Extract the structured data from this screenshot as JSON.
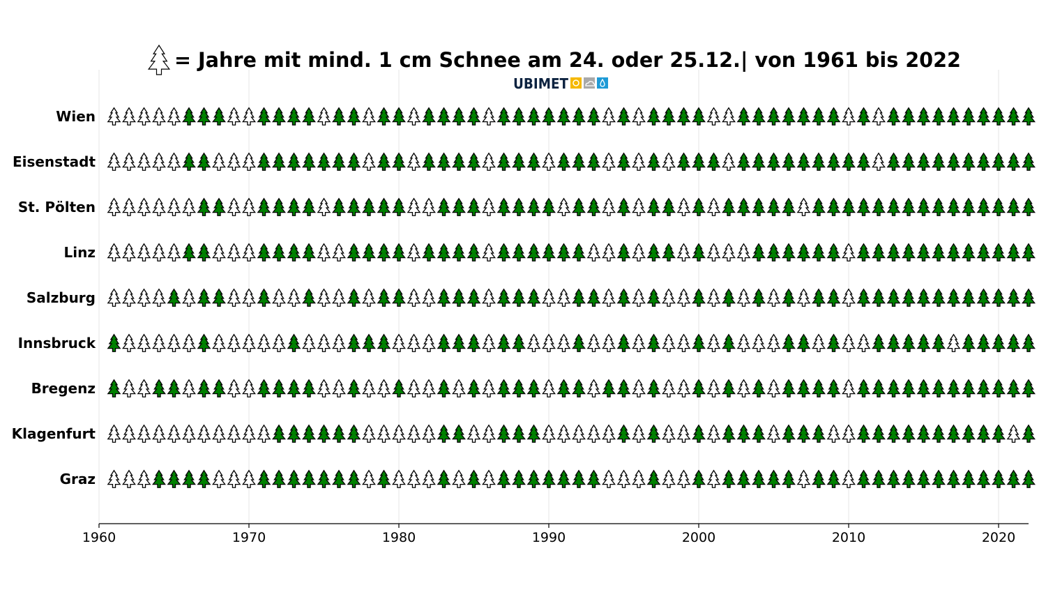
{
  "chart_data": {
    "type": "pictogram",
    "title": "= Jahre mit mind. 1 cm Schnee am 24. oder 25.12.| von 1961 bis 2022",
    "legend_icon": "tree-icon-outline",
    "logo": "UBIMET",
    "xlim": [
      1960,
      2022
    ],
    "x_ticks": [
      1960,
      1970,
      1980,
      1990,
      2000,
      2010,
      2020
    ],
    "years": [
      1961,
      2022
    ],
    "grid": "vertical",
    "colors": {
      "snow": "#008000",
      "no_snow": "#ffffff",
      "outline": "#000000",
      "logo_yellow": "#f5b800",
      "logo_gray": "#a9a9a9",
      "logo_blue": "#1e9ad6",
      "logo_text": "#0d2340"
    },
    "encoding": {
      "1": "green tree (snow)",
      "0": "white tree (no snow)"
    },
    "series": [
      {
        "name": "Wien",
        "values": [
          0,
          0,
          0,
          0,
          0,
          1,
          1,
          1,
          0,
          0,
          1,
          1,
          1,
          1,
          0,
          1,
          1,
          0,
          1,
          1,
          0,
          1,
          1,
          1,
          1,
          0,
          1,
          1,
          1,
          1,
          1,
          1,
          1,
          0,
          1,
          0,
          1,
          1,
          1,
          1,
          0,
          0,
          1,
          1,
          1,
          1,
          1,
          1,
          1,
          0,
          1,
          0,
          1,
          1,
          1,
          1,
          1,
          1,
          1,
          1,
          1,
          1
        ]
      },
      {
        "name": "Eisenstadt",
        "values": [
          0,
          0,
          0,
          0,
          0,
          1,
          1,
          0,
          0,
          0,
          1,
          1,
          1,
          1,
          1,
          1,
          1,
          0,
          1,
          1,
          0,
          1,
          1,
          1,
          1,
          0,
          1,
          1,
          1,
          0,
          1,
          1,
          1,
          0,
          1,
          0,
          1,
          0,
          1,
          1,
          1,
          0,
          1,
          1,
          1,
          1,
          1,
          1,
          1,
          1,
          1,
          0,
          1,
          1,
          1,
          1,
          1,
          1,
          1,
          1,
          1,
          1
        ]
      },
      {
        "name": "St. Pölten",
        "values": [
          0,
          0,
          0,
          0,
          0,
          0,
          1,
          1,
          0,
          0,
          1,
          1,
          1,
          1,
          0,
          1,
          1,
          1,
          1,
          1,
          0,
          0,
          1,
          1,
          1,
          0,
          1,
          1,
          1,
          1,
          0,
          1,
          1,
          0,
          1,
          0,
          1,
          1,
          0,
          1,
          0,
          1,
          1,
          1,
          1,
          1,
          0,
          1,
          1,
          1,
          1,
          1,
          1,
          1,
          1,
          1,
          1,
          1,
          1,
          1,
          1,
          1
        ]
      },
      {
        "name": "Linz",
        "values": [
          0,
          0,
          0,
          0,
          0,
          1,
          1,
          0,
          0,
          0,
          1,
          1,
          1,
          1,
          0,
          0,
          1,
          1,
          1,
          1,
          0,
          1,
          1,
          1,
          1,
          0,
          1,
          1,
          1,
          1,
          1,
          1,
          0,
          0,
          1,
          0,
          1,
          1,
          0,
          1,
          0,
          0,
          0,
          1,
          1,
          1,
          1,
          1,
          1,
          0,
          1,
          1,
          1,
          1,
          1,
          1,
          1,
          1,
          1,
          1,
          1,
          1
        ]
      },
      {
        "name": "Salzburg",
        "values": [
          0,
          0,
          0,
          0,
          1,
          0,
          1,
          1,
          0,
          0,
          1,
          0,
          0,
          1,
          0,
          0,
          1,
          0,
          1,
          1,
          0,
          0,
          1,
          1,
          1,
          0,
          1,
          1,
          1,
          0,
          0,
          1,
          1,
          0,
          1,
          0,
          1,
          0,
          0,
          1,
          0,
          1,
          0,
          1,
          0,
          1,
          0,
          1,
          1,
          0,
          1,
          1,
          1,
          1,
          1,
          1,
          1,
          1,
          1,
          1,
          1,
          1
        ]
      },
      {
        "name": "Innsbruck",
        "values": [
          1,
          0,
          0,
          0,
          0,
          0,
          1,
          0,
          0,
          0,
          0,
          0,
          1,
          0,
          0,
          0,
          1,
          1,
          1,
          0,
          0,
          0,
          1,
          1,
          1,
          0,
          1,
          1,
          0,
          0,
          0,
          1,
          0,
          0,
          1,
          0,
          1,
          0,
          0,
          1,
          0,
          1,
          0,
          0,
          0,
          1,
          1,
          0,
          1,
          0,
          0,
          1,
          1,
          1,
          1,
          1,
          0,
          1,
          1,
          1,
          1,
          1
        ]
      },
      {
        "name": "Bregenz",
        "values": [
          1,
          0,
          0,
          1,
          1,
          0,
          1,
          1,
          0,
          0,
          1,
          1,
          1,
          1,
          0,
          0,
          1,
          0,
          0,
          1,
          0,
          0,
          1,
          0,
          1,
          0,
          1,
          1,
          1,
          0,
          1,
          1,
          0,
          1,
          1,
          0,
          1,
          0,
          0,
          1,
          0,
          1,
          0,
          1,
          0,
          1,
          1,
          1,
          1,
          0,
          1,
          1,
          1,
          1,
          1,
          1,
          1,
          1,
          1,
          1,
          1,
          1
        ]
      },
      {
        "name": "Klagenfurt",
        "values": [
          0,
          0,
          0,
          0,
          0,
          0,
          0,
          0,
          0,
          0,
          0,
          1,
          1,
          1,
          1,
          1,
          1,
          0,
          0,
          0,
          0,
          0,
          1,
          1,
          0,
          0,
          1,
          1,
          1,
          0,
          0,
          0,
          0,
          0,
          1,
          0,
          1,
          0,
          0,
          1,
          0,
          1,
          1,
          1,
          0,
          1,
          1,
          1,
          0,
          0,
          1,
          1,
          1,
          1,
          1,
          1,
          1,
          1,
          1,
          1,
          0,
          1
        ]
      },
      {
        "name": "Graz",
        "values": [
          0,
          0,
          0,
          1,
          1,
          1,
          1,
          0,
          0,
          0,
          1,
          1,
          1,
          1,
          1,
          1,
          1,
          0,
          1,
          0,
          0,
          0,
          1,
          0,
          1,
          0,
          1,
          1,
          1,
          1,
          1,
          1,
          1,
          0,
          0,
          0,
          1,
          0,
          0,
          1,
          0,
          1,
          1,
          1,
          1,
          1,
          0,
          1,
          1,
          0,
          1,
          1,
          1,
          1,
          1,
          1,
          1,
          1,
          1,
          1,
          1,
          1
        ]
      }
    ]
  }
}
